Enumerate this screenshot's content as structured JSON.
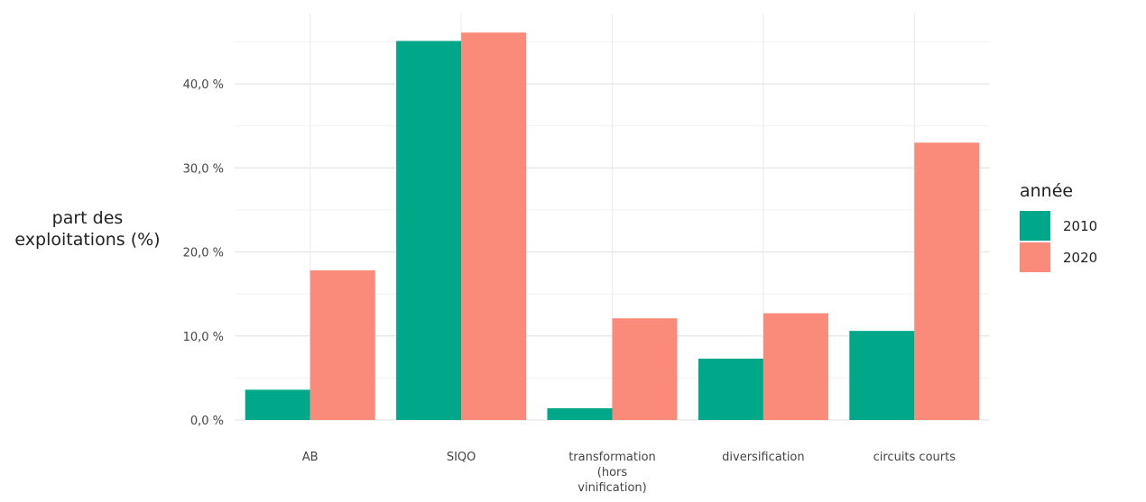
{
  "chart_data": {
    "type": "bar",
    "title": "",
    "xlabel": "",
    "ylabel": "part des exploitations (%)",
    "ylabel_lines": [
      "part des",
      "exploitations (%)"
    ],
    "categories": [
      "AB",
      "SIQO",
      "transformation (hors vinification)",
      "diversification",
      "circuits courts"
    ],
    "category_label_lines": [
      [
        "AB"
      ],
      [
        "SIQO"
      ],
      [
        "transformation",
        "(hors",
        "vinification)"
      ],
      [
        "diversification"
      ],
      [
        "circuits courts"
      ]
    ],
    "series": [
      {
        "name": "2010",
        "color": "#00A88A",
        "values": [
          3.6,
          45.1,
          1.4,
          7.3,
          10.6
        ]
      },
      {
        "name": "2020",
        "color": "#FA8B7B",
        "values": [
          17.8,
          46.1,
          12.1,
          12.7,
          33.0
        ]
      }
    ],
    "ylim": [
      0,
      47.5
    ],
    "yticks": [
      0,
      10,
      20,
      30,
      40
    ],
    "ytick_labels": [
      "0,0 %",
      "10,0 %",
      "20,0 %",
      "30,0 %",
      "40,0 %"
    ],
    "grid": true,
    "legend": {
      "title": "année",
      "position": "right"
    }
  }
}
